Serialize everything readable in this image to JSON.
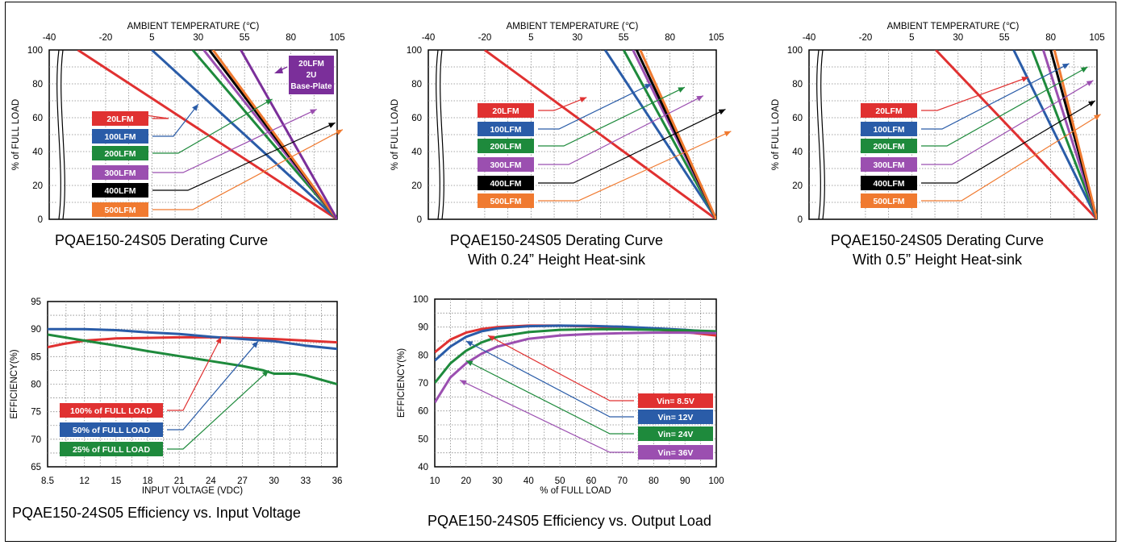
{
  "chart_data": [
    {
      "type": "line",
      "title": "PQAE150-24S05 Derating Curve",
      "subtitle": "",
      "xlabel": "AMBIENT TEMPERATURE (℃)",
      "ylabel": "% of FULL LOAD",
      "xticks": [
        "-40",
        "-20",
        "5",
        "30",
        "55",
        "80",
        "105"
      ],
      "yticks": [
        "0",
        "20",
        "40",
        "60",
        "80",
        "100"
      ],
      "xlim": [
        -40,
        105
      ],
      "ylim": [
        0,
        100
      ],
      "grid": true,
      "series": [
        {
          "name": "20LFM",
          "color": "#e03131",
          "x": [
            -35,
            105
          ],
          "y": [
            100,
            0
          ]
        },
        {
          "name": "100LFM",
          "color": "#2a5ca8",
          "x": [
            5,
            105
          ],
          "y": [
            100,
            0
          ]
        },
        {
          "name": "200LFM",
          "color": "#1e8a3c",
          "x": [
            27,
            105
          ],
          "y": [
            100,
            0
          ]
        },
        {
          "name": "300LFM",
          "color": "#9b4fb0",
          "x": [
            33,
            105
          ],
          "y": [
            100,
            0
          ]
        },
        {
          "name": "400LFM",
          "color": "#000000",
          "x": [
            36,
            105
          ],
          "y": [
            100,
            0
          ]
        },
        {
          "name": "500LFM",
          "color": "#f07a30",
          "x": [
            38,
            105
          ],
          "y": [
            100,
            0
          ]
        },
        {
          "name": "20LFM 2U Base-Plate",
          "color": "#7b2f9a",
          "x": [
            53,
            105
          ],
          "y": [
            100,
            0
          ]
        }
      ],
      "callout": {
        "lines": [
          "20LFM",
          "2U",
          "Base-Plate"
        ],
        "color": "#7b2f9a"
      }
    },
    {
      "type": "line",
      "title": "PQAE150-24S05 Derating Curve",
      "subtitle": "With 0.24” Height Heat-sink",
      "xlabel": "AMBIENT TEMPERATURE (℃)",
      "ylabel": "% of FULL LOAD",
      "xticks": [
        "-40",
        "-20",
        "5",
        "30",
        "55",
        "80",
        "105"
      ],
      "yticks": [
        "0",
        "20",
        "40",
        "60",
        "80",
        "100"
      ],
      "xlim": [
        -40,
        105
      ],
      "ylim": [
        0,
        100
      ],
      "grid": true,
      "series": [
        {
          "name": "20LFM",
          "color": "#e03131",
          "x": [
            -20,
            105
          ],
          "y": [
            100,
            0
          ]
        },
        {
          "name": "100LFM",
          "color": "#2a5ca8",
          "x": [
            45,
            105
          ],
          "y": [
            100,
            0
          ]
        },
        {
          "name": "200LFM",
          "color": "#1e8a3c",
          "x": [
            55,
            105
          ],
          "y": [
            100,
            0
          ]
        },
        {
          "name": "300LFM",
          "color": "#9b4fb0",
          "x": [
            60,
            105
          ],
          "y": [
            100,
            0
          ]
        },
        {
          "name": "400LFM",
          "color": "#000000",
          "x": [
            62,
            105
          ],
          "y": [
            100,
            0
          ]
        },
        {
          "name": "500LFM",
          "color": "#f07a30",
          "x": [
            64,
            105
          ],
          "y": [
            100,
            0
          ]
        }
      ]
    },
    {
      "type": "line",
      "title": "PQAE150-24S05 Derating Curve",
      "subtitle": "With 0.5” Height Heat-sink",
      "xlabel": "AMBIENT TEMPERATURE (℃)",
      "ylabel": "% of FULL LOAD",
      "xticks": [
        "-40",
        "-20",
        "5",
        "30",
        "55",
        "80",
        "105"
      ],
      "yticks": [
        "0",
        "20",
        "40",
        "60",
        "80",
        "100"
      ],
      "xlim": [
        -40,
        105
      ],
      "ylim": [
        0,
        100
      ],
      "grid": true,
      "series": [
        {
          "name": "20LFM",
          "color": "#e03131",
          "x": [
            18,
            105
          ],
          "y": [
            100,
            0
          ]
        },
        {
          "name": "100LFM",
          "color": "#2a5ca8",
          "x": [
            60,
            105
          ],
          "y": [
            100,
            0
          ]
        },
        {
          "name": "200LFM",
          "color": "#1e8a3c",
          "x": [
            70,
            105
          ],
          "y": [
            100,
            0
          ]
        },
        {
          "name": "300LFM",
          "color": "#9b4fb0",
          "x": [
            76,
            105
          ],
          "y": [
            100,
            0
          ]
        },
        {
          "name": "400LFM",
          "color": "#000000",
          "x": [
            80,
            105
          ],
          "y": [
            100,
            0
          ]
        },
        {
          "name": "500LFM",
          "color": "#f07a30",
          "x": [
            82,
            105
          ],
          "y": [
            100,
            0
          ]
        }
      ]
    },
    {
      "type": "line",
      "title": "PQAE150-24S05 Efficiency vs. Input Voltage",
      "subtitle": "",
      "xlabel": "INPUT VOLTAGE (VDC)",
      "ylabel": "EFFICIENCY(%)",
      "xticks": [
        "8.5",
        "12",
        "15",
        "18",
        "21",
        "24",
        "27",
        "30",
        "33",
        "36"
      ],
      "yticks": [
        "65",
        "70",
        "75",
        "80",
        "85",
        "90",
        "95"
      ],
      "xlim": [
        8.5,
        36
      ],
      "ylim": [
        65,
        95
      ],
      "grid": true,
      "series": [
        {
          "name": "100% of FULL LOAD",
          "color": "#e03131",
          "x": [
            8.5,
            10,
            12,
            15,
            18,
            21,
            24,
            27,
            30,
            33,
            36
          ],
          "y": [
            86.7,
            87.3,
            87.9,
            88.3,
            88.4,
            88.5,
            88.5,
            88.4,
            88.2,
            87.9,
            87.6
          ]
        },
        {
          "name": "50% of FULL LOAD",
          "color": "#2a5ca8",
          "x": [
            8.5,
            10,
            12,
            15,
            18,
            21,
            24,
            27,
            30,
            33,
            36
          ],
          "y": [
            90.0,
            90.0,
            90.0,
            89.8,
            89.4,
            89.1,
            88.6,
            88.2,
            87.8,
            87.0,
            86.4
          ]
        },
        {
          "name": "25% of FULL LOAD",
          "color": "#1e8a3c",
          "x": [
            8.5,
            12,
            15,
            18,
            21,
            24,
            27,
            29,
            30,
            32,
            33,
            36
          ],
          "y": [
            89.0,
            87.9,
            87.0,
            86.0,
            85.1,
            84.2,
            83.3,
            82.5,
            81.9,
            81.9,
            81.6,
            80.0
          ]
        }
      ]
    },
    {
      "type": "line",
      "title": "PQAE150-24S05 Efficiency vs. Output Load",
      "subtitle": "",
      "xlabel": "% of FULL LOAD",
      "ylabel": "EFFICIENCY(%)",
      "xticks": [
        "10",
        "20",
        "30",
        "40",
        "50",
        "60",
        "70",
        "80",
        "90",
        "100"
      ],
      "yticks": [
        "40",
        "50",
        "60",
        "70",
        "80",
        "90",
        "100"
      ],
      "xlim": [
        10,
        100
      ],
      "ylim": [
        40,
        100
      ],
      "grid": true,
      "series": [
        {
          "name": "Vin= 8.5V",
          "color": "#e03131",
          "x": [
            10,
            15,
            20,
            25,
            30,
            40,
            50,
            60,
            70,
            80,
            90,
            100
          ],
          "y": [
            81,
            85.5,
            88,
            89.3,
            90,
            90.5,
            90.5,
            90.2,
            89.8,
            89.2,
            88.2,
            87
          ]
        },
        {
          "name": "Vin= 12V",
          "color": "#2a5ca8",
          "x": [
            10,
            15,
            20,
            25,
            30,
            40,
            50,
            60,
            70,
            80,
            90,
            100
          ],
          "y": [
            78,
            83,
            86.5,
            88.5,
            89.5,
            90.3,
            90.5,
            90.4,
            90.1,
            89.6,
            89,
            88.2
          ]
        },
        {
          "name": "Vin= 24V",
          "color": "#1e8a3c",
          "x": [
            10,
            15,
            20,
            25,
            30,
            40,
            50,
            60,
            70,
            80,
            90,
            100
          ],
          "y": [
            70,
            77,
            81.5,
            84.5,
            86.5,
            88.2,
            89,
            89.2,
            89.2,
            89,
            88.8,
            88.5
          ]
        },
        {
          "name": "Vin= 36V",
          "color": "#9b4fb0",
          "x": [
            10,
            15,
            20,
            25,
            30,
            40,
            50,
            60,
            70,
            80,
            90,
            100
          ],
          "y": [
            63,
            72,
            77,
            80.5,
            83,
            85.8,
            87,
            87.5,
            87.8,
            88,
            88,
            87.8
          ]
        }
      ]
    }
  ]
}
